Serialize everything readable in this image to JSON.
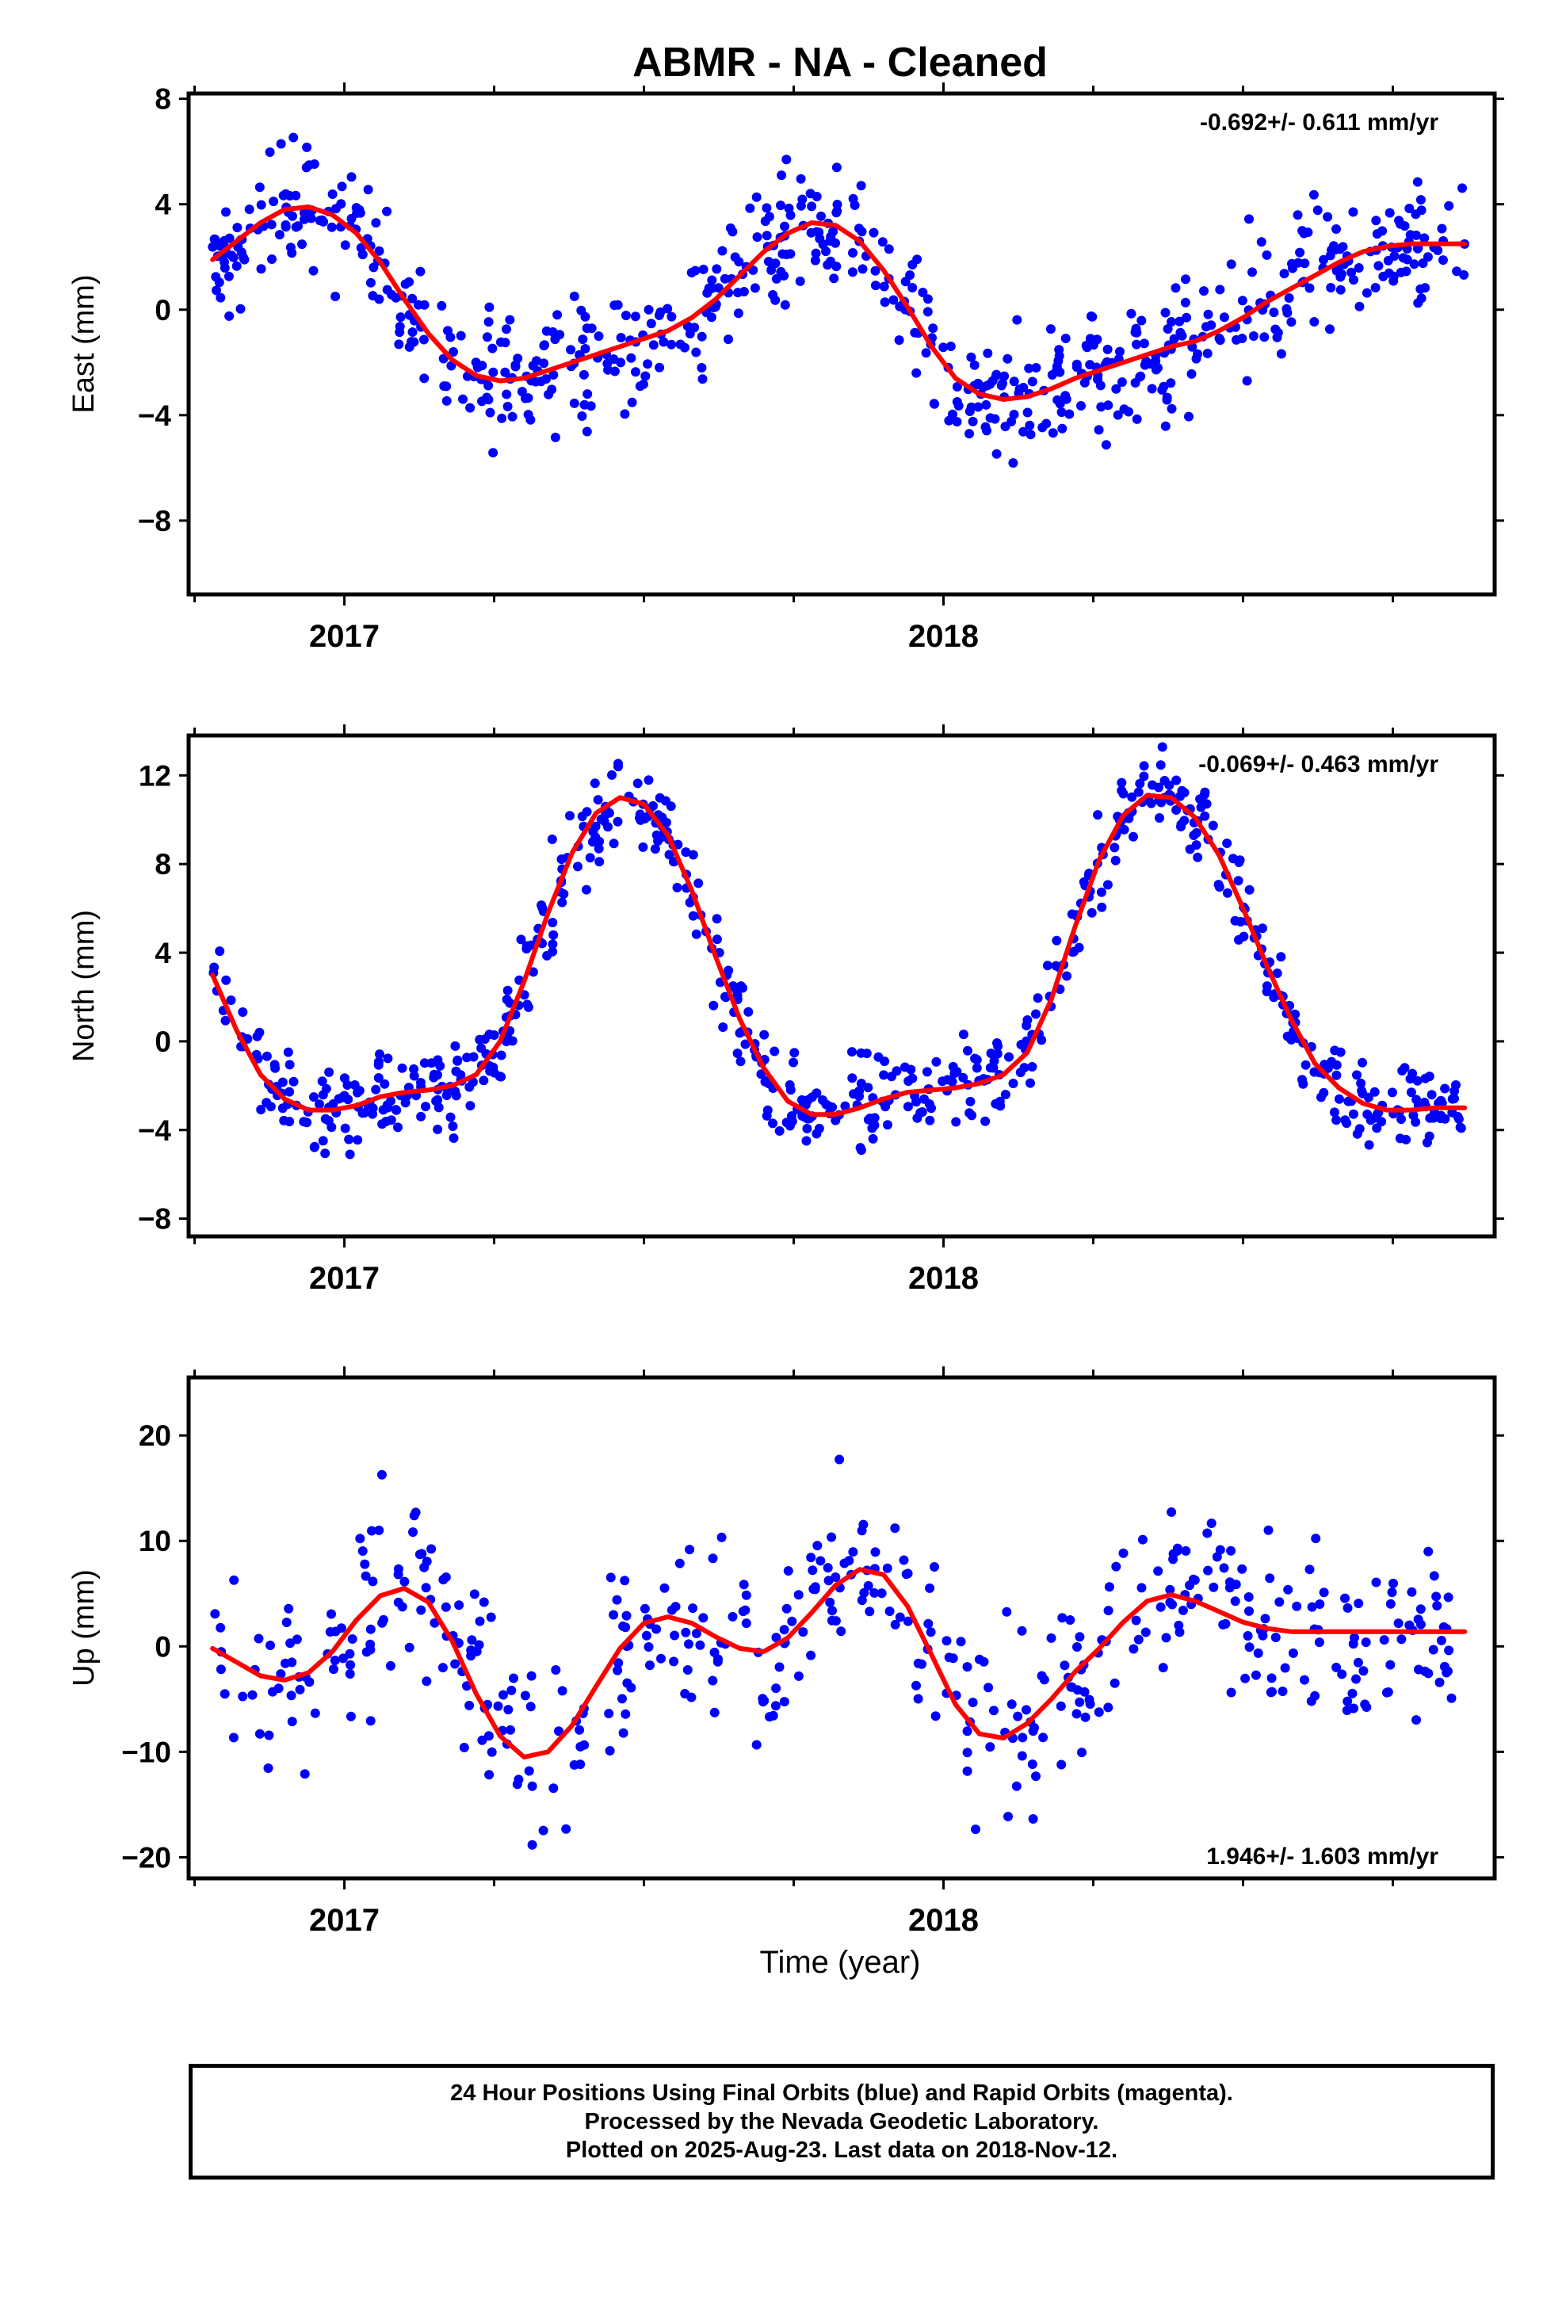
{
  "title": "ABMR  - NA - Cleaned",
  "xlabel": "Time (year)",
  "colors": {
    "points": "#0000ff",
    "fit": "#ff0000",
    "axes": "#000000"
  },
  "chart_data": [
    {
      "type": "scatter",
      "component": "East",
      "ylabel": "East (mm)",
      "rate": "-0.692+/- 0.611 mm/yr",
      "xlim": [
        2016.74,
        2018.92
      ],
      "ylim": [
        -10.8,
        8.2
      ],
      "xticks_major": [
        2017,
        2018
      ],
      "xtick_labels": [
        "2017",
        "2018"
      ],
      "yticks": [
        -8,
        -4,
        0,
        4,
        8
      ],
      "ytick_labels": [
        "−8",
        "−4",
        "0",
        "4",
        "8"
      ],
      "series": [
        {
          "kind": "daily positions (final orbits, blue)",
          "x_range": [
            2016.78,
            2018.87
          ],
          "n_points": 680
        },
        {
          "kind": "seasonal + trend fit (red curve)",
          "x": [
            2016.78,
            2016.82,
            2016.86,
            2016.9,
            2016.94,
            2016.98,
            2017.02,
            2017.06,
            2017.1,
            2017.14,
            2017.18,
            2017.22,
            2017.26,
            2017.3,
            2017.34,
            2017.38,
            2017.42,
            2017.46,
            2017.5,
            2017.54,
            2017.58,
            2017.62,
            2017.66,
            2017.7,
            2017.74,
            2017.78,
            2017.82,
            2017.86,
            2017.9,
            2017.94,
            2017.98,
            2018.02,
            2018.06,
            2018.1,
            2018.14,
            2018.18,
            2018.22,
            2018.26,
            2018.3,
            2018.34,
            2018.38,
            2018.42,
            2018.46,
            2018.5,
            2018.54,
            2018.58,
            2018.62,
            2018.66,
            2018.7,
            2018.74,
            2018.78,
            2018.82,
            2018.87
          ],
          "y": [
            1.9,
            2.6,
            3.3,
            3.8,
            3.9,
            3.6,
            2.9,
            1.8,
            0.4,
            -0.9,
            -1.9,
            -2.5,
            -2.7,
            -2.6,
            -2.3,
            -2.0,
            -1.7,
            -1.4,
            -1.1,
            -0.8,
            -0.3,
            0.4,
            1.3,
            2.2,
            2.9,
            3.3,
            3.2,
            2.6,
            1.5,
            0.1,
            -1.4,
            -2.6,
            -3.2,
            -3.4,
            -3.3,
            -3.0,
            -2.6,
            -2.3,
            -2.0,
            -1.7,
            -1.4,
            -1.2,
            -0.8,
            -0.3,
            0.3,
            0.8,
            1.3,
            1.8,
            2.2,
            2.4,
            2.5,
            2.5,
            2.5
          ]
        }
      ]
    },
    {
      "type": "scatter",
      "component": "North",
      "ylabel": "North (mm)",
      "rate": "-0.069+/- 0.463 mm/yr",
      "xlim": [
        2016.74,
        2018.92
      ],
      "ylim": [
        -8.8,
        13.8
      ],
      "xticks_major": [
        2017,
        2018
      ],
      "xtick_labels": [
        "2017",
        "2018"
      ],
      "yticks": [
        -8,
        -4,
        0,
        4,
        8,
        12
      ],
      "ytick_labels": [
        "−8",
        "−4",
        "0",
        "4",
        "8",
        "12"
      ],
      "series": [
        {
          "kind": "daily positions (final orbits, blue)",
          "x_range": [
            2016.78,
            2018.87
          ],
          "n_points": 680
        },
        {
          "kind": "seasonal + trend fit (red curve)",
          "x": [
            2016.78,
            2016.82,
            2016.86,
            2016.9,
            2016.94,
            2016.98,
            2017.02,
            2017.06,
            2017.1,
            2017.14,
            2017.18,
            2017.22,
            2017.26,
            2017.3,
            2017.34,
            2017.38,
            2017.42,
            2017.46,
            2017.5,
            2017.54,
            2017.58,
            2017.62,
            2017.66,
            2017.7,
            2017.74,
            2017.78,
            2017.82,
            2017.86,
            2017.9,
            2017.94,
            2017.98,
            2018.02,
            2018.06,
            2018.1,
            2018.14,
            2018.18,
            2018.22,
            2018.26,
            2018.3,
            2018.34,
            2018.38,
            2018.42,
            2018.46,
            2018.5,
            2018.54,
            2018.58,
            2018.62,
            2018.66,
            2018.7,
            2018.74,
            2018.78,
            2018.82,
            2018.87
          ],
          "y": [
            3.0,
            0.5,
            -1.5,
            -2.6,
            -3.1,
            -3.1,
            -2.9,
            -2.5,
            -2.3,
            -2.2,
            -2.0,
            -1.5,
            0.0,
            2.7,
            5.8,
            8.5,
            10.3,
            11.0,
            10.7,
            9.3,
            6.8,
            3.8,
            1.0,
            -1.2,
            -2.7,
            -3.3,
            -3.3,
            -3.0,
            -2.6,
            -2.3,
            -2.2,
            -2.1,
            -1.9,
            -1.5,
            -0.5,
            1.9,
            5.2,
            8.2,
            10.2,
            11.1,
            11.0,
            10.1,
            8.4,
            6.0,
            3.4,
            1.0,
            -1.0,
            -2.1,
            -2.8,
            -3.1,
            -3.1,
            -3.0,
            -3.0
          ]
        }
      ]
    },
    {
      "type": "scatter",
      "component": "Up",
      "ylabel": "Up (mm)",
      "rate": "1.946+/- 1.603 mm/yr",
      "xlim": [
        2016.74,
        2018.92
      ],
      "ylim": [
        -22,
        25.5
      ],
      "xticks_major": [
        2017,
        2018
      ],
      "xtick_labels": [
        "2017",
        "2018"
      ],
      "yticks": [
        -20,
        -10,
        0,
        10,
        20
      ],
      "ytick_labels": [
        "−20",
        "−10",
        "0",
        "10",
        "20"
      ],
      "series": [
        {
          "kind": "daily positions (final orbits, blue)",
          "x_range": [
            2016.78,
            2018.87
          ],
          "n_points": 470
        },
        {
          "kind": "seasonal + trend fit (red curve)",
          "x": [
            2016.78,
            2016.82,
            2016.86,
            2016.9,
            2016.94,
            2016.98,
            2017.02,
            2017.06,
            2017.1,
            2017.14,
            2017.18,
            2017.22,
            2017.26,
            2017.3,
            2017.34,
            2017.38,
            2017.42,
            2017.46,
            2017.5,
            2017.54,
            2017.58,
            2017.62,
            2017.66,
            2017.7,
            2017.74,
            2017.78,
            2017.82,
            2017.86,
            2017.9,
            2017.94,
            2017.98,
            2018.02,
            2018.06,
            2018.1,
            2018.14,
            2018.18,
            2018.22,
            2018.26,
            2018.3,
            2018.34,
            2018.38,
            2018.42,
            2018.46,
            2018.5,
            2018.54,
            2018.58,
            2018.62,
            2018.66,
            2018.7,
            2018.74,
            2018.78,
            2018.82,
            2018.87
          ],
          "y": [
            -0.2,
            -1.5,
            -2.8,
            -3.2,
            -2.5,
            -0.5,
            2.5,
            4.8,
            5.5,
            4.2,
            0.5,
            -4.5,
            -8.5,
            -10.5,
            -10.0,
            -7.5,
            -3.8,
            -0.2,
            2.2,
            2.8,
            2.2,
            0.9,
            -0.2,
            -0.5,
            0.8,
            3.2,
            5.8,
            7.3,
            6.8,
            3.8,
            -0.8,
            -5.5,
            -8.3,
            -8.7,
            -7.3,
            -5.0,
            -2.4,
            -0.2,
            2.3,
            4.3,
            4.9,
            4.3,
            3.3,
            2.3,
            1.7,
            1.4,
            1.4,
            1.4,
            1.4,
            1.4,
            1.4,
            1.4,
            1.4
          ]
        }
      ]
    }
  ],
  "footer": {
    "line1": "24 Hour Positions Using Final Orbits (blue) and Rapid Orbits (magenta).",
    "line2": "Processed by the Nevada Geodetic Laboratory.",
    "line3": "Plotted on 2025-Aug-23. Last data on 2018-Nov-12."
  }
}
